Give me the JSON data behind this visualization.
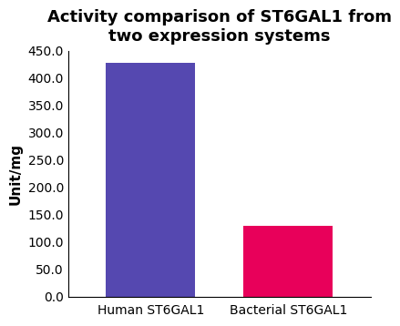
{
  "categories": [
    "Human ST6GAL1",
    "Bacterial ST6GAL1"
  ],
  "values": [
    428,
    130
  ],
  "bar_colors": [
    "#5548b0",
    "#e8005a"
  ],
  "title": "Activity comparison of ST6GAL1 from\ntwo expression systems",
  "ylabel": "Unit/mg",
  "ylim": [
    0,
    450
  ],
  "yticks": [
    0.0,
    50.0,
    100.0,
    150.0,
    200.0,
    250.0,
    300.0,
    350.0,
    400.0,
    450.0
  ],
  "title_fontsize": 13,
  "label_fontsize": 11,
  "tick_fontsize": 10,
  "xtick_fontsize": 10,
  "bar_width": 0.65,
  "background_color": "#ffffff"
}
